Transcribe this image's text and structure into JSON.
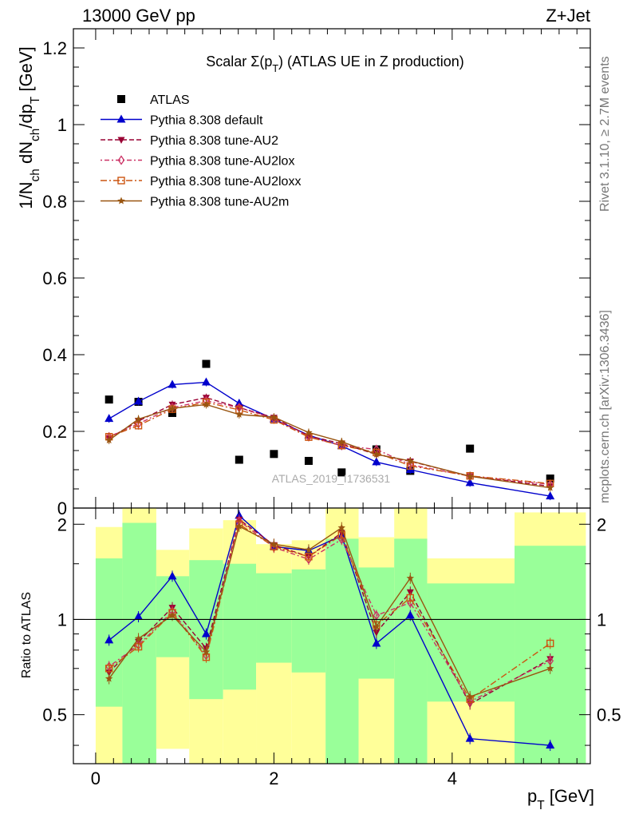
{
  "header": {
    "left": "13000 GeV pp",
    "right": "Z+Jet",
    "plot_title": "Scalar Σ(p_T) (ATLAS UE in Z production)",
    "watermark": "ATLAS_2019_I1736531"
  },
  "side": {
    "rivet": "Rivet 3.1.10, ≥ 2.7M events",
    "mcplots": "mcplots.cern.ch [arXiv:1306.3436]"
  },
  "axes": {
    "ylabel_main": "1/N_ch dN_ch/dp_T [GeV]",
    "ylabel_ratio": "Ratio to ATLAS",
    "xlabel": "p_T [GeV]"
  },
  "chart_data": [
    {
      "type": "scatter",
      "panel": "main",
      "title": "Scalar Σ(p_T) (ATLAS UE in Z production)",
      "xlabel": "p_T [GeV]",
      "ylabel": "1/N_ch dN_ch/dp_T [GeV]",
      "xlim": [
        -0.25,
        5.55
      ],
      "ylim": [
        0,
        1.25
      ],
      "yticks": [
        0,
        0.2,
        0.4,
        0.6,
        0.8,
        1,
        1.2
      ],
      "ytick_labels": [
        "0",
        "0.2",
        "0.4",
        "0.6",
        "0.8",
        "1",
        "1.2"
      ],
      "x": [
        0.15,
        0.48,
        0.86,
        1.24,
        1.61,
        2.0,
        2.39,
        2.76,
        3.15,
        3.53,
        4.2,
        5.1
      ],
      "bin_edges": [
        0.0,
        0.3,
        0.68,
        1.05,
        1.43,
        1.8,
        2.2,
        2.58,
        2.95,
        3.35,
        3.72,
        4.7,
        5.5
      ],
      "legend_position": "top-left",
      "series": [
        {
          "name": "ATLAS",
          "color": "#000000",
          "marker": "square",
          "values": [
            0.283,
            0.277,
            0.248,
            0.376,
            0.126,
            0.141,
            0.123,
            0.093,
            0.153,
            0.097,
            0.155,
            0.077
          ]
        },
        {
          "name": "Pythia 8.308 default",
          "color": "#0000cc",
          "marker": "triangle-up",
          "line": "solid",
          "values": [
            0.233,
            0.278,
            0.322,
            0.328,
            0.273,
            0.232,
            0.19,
            0.162,
            0.12,
            0.1,
            0.066,
            0.031
          ]
        },
        {
          "name": "Pythia 8.308 tune-AU2",
          "color": "#990033",
          "marker": "triangle-down",
          "line": "dashed",
          "values": [
            0.182,
            0.227,
            0.27,
            0.288,
            0.262,
            0.236,
            0.188,
            0.168,
            0.14,
            0.122,
            0.083,
            0.057
          ]
        },
        {
          "name": "Pythia 8.308 tune-AU2lox",
          "color": "#cc3366",
          "marker": "diamond-open",
          "line": "dashdot",
          "values": [
            0.186,
            0.22,
            0.262,
            0.28,
            0.262,
            0.233,
            0.186,
            0.163,
            0.153,
            0.113,
            0.083,
            0.062
          ]
        },
        {
          "name": "Pythia 8.308 tune-AU2loxx",
          "color": "#cc5511",
          "marker": "square-open",
          "line": "dashdot2",
          "values": [
            0.186,
            0.215,
            0.258,
            0.276,
            0.256,
            0.23,
            0.185,
            0.163,
            0.145,
            0.11,
            0.084,
            0.064
          ]
        },
        {
          "name": "Pythia 8.308 tune-AU2m",
          "color": "#995511",
          "marker": "star",
          "line": "solid",
          "values": [
            0.177,
            0.232,
            0.26,
            0.27,
            0.244,
            0.237,
            0.197,
            0.173,
            0.14,
            0.123,
            0.083,
            0.053
          ]
        }
      ]
    },
    {
      "type": "line",
      "panel": "ratio",
      "ylabel": "Ratio to ATLAS",
      "xlabel": "p_T [GeV]",
      "xlim": [
        -0.25,
        5.55
      ],
      "ylim": [
        0.35,
        2.25
      ],
      "xticks": [
        0,
        2,
        4
      ],
      "xtick_labels": [
        "0",
        "2",
        "4"
      ],
      "yticks": [
        0.5,
        1,
        2
      ],
      "ytick_labels": [
        "0.5",
        "1",
        "2"
      ],
      "x": [
        0.15,
        0.48,
        0.86,
        1.24,
        1.61,
        2.0,
        2.39,
        2.76,
        3.15,
        3.53,
        4.2,
        5.1
      ],
      "bands": {
        "bin_edges": [
          0.0,
          0.3,
          0.68,
          1.05,
          1.43,
          1.8,
          2.2,
          2.58,
          2.95,
          3.35,
          3.72,
          4.7,
          5.5
        ],
        "yellow_low": [
          0.35,
          0.35,
          0.39,
          0.35,
          0.35,
          0.35,
          0.35,
          0.35,
          0.35,
          0.35,
          0.35,
          0.35
        ],
        "yellow_high": [
          1.96,
          2.25,
          1.66,
          1.94,
          2.06,
          1.73,
          1.78,
          2.25,
          1.82,
          2.25,
          1.56,
          2.18
        ],
        "green_low": [
          0.53,
          0.35,
          0.76,
          0.56,
          0.6,
          0.73,
          0.68,
          0.35,
          0.65,
          0.35,
          0.55,
          0.35
        ],
        "green_high": [
          1.56,
          2.02,
          1.37,
          1.54,
          1.5,
          1.4,
          1.44,
          1.8,
          1.46,
          1.8,
          1.3,
          1.71
        ]
      },
      "series": [
        {
          "name": "Pythia 8.308 default",
          "color": "#0000cc",
          "values": [
            0.86,
            1.02,
            1.37,
            0.9,
            2.13,
            1.7,
            1.65,
            1.84,
            0.84,
            1.03,
            0.42,
            0.4
          ]
        },
        {
          "name": "Pythia 8.308 tune-AU2",
          "color": "#990033",
          "values": [
            0.68,
            0.85,
            1.09,
            0.81,
            2.07,
            1.72,
            1.58,
            1.88,
            0.91,
            1.22,
            0.54,
            0.75
          ]
        },
        {
          "name": "Pythia 8.308 tune-AU2lox",
          "color": "#cc3366",
          "values": [
            0.71,
            0.83,
            1.06,
            0.77,
            2.05,
            1.69,
            1.55,
            1.79,
            1.03,
            1.13,
            0.55,
            0.74
          ]
        },
        {
          "name": "Pythia 8.308 tune-AU2loxx",
          "color": "#cc5511",
          "values": [
            0.7,
            0.82,
            1.05,
            0.76,
            2.0,
            1.7,
            1.58,
            1.85,
            0.96,
            1.17,
            0.56,
            0.84
          ]
        },
        {
          "name": "Pythia 8.308 tune-AU2m",
          "color": "#995511",
          "values": [
            0.65,
            0.87,
            1.03,
            0.79,
            1.97,
            1.73,
            1.66,
            1.95,
            0.95,
            1.35,
            0.57,
            0.7
          ]
        }
      ]
    }
  ]
}
